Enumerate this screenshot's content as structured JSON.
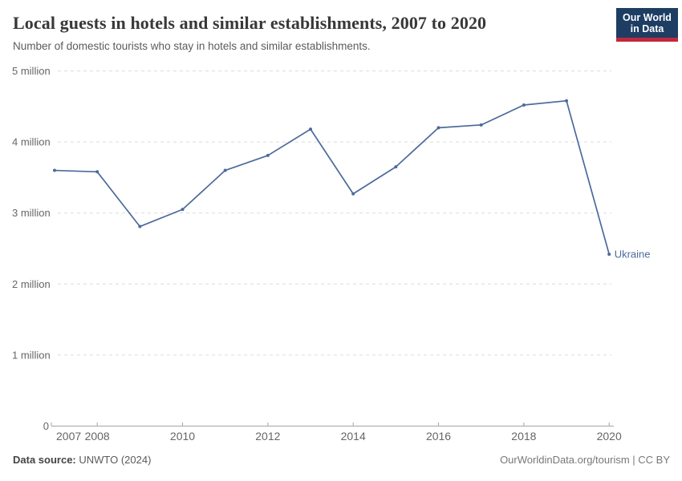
{
  "header": {
    "title": "Local guests in hotels and similar establishments, 2007 to 2020",
    "subtitle": "Number of domestic tourists who stay in hotels and similar establishments.",
    "logo": {
      "line1": "Our World",
      "line2": "in Data",
      "bg_color": "#1d3d63",
      "stripe_color": "#c0293c"
    }
  },
  "chart_data": {
    "type": "line",
    "title": "Local guests in hotels and similar establishments, 2007 to 2020",
    "xlabel": "",
    "ylabel": "",
    "x": [
      2007,
      2008,
      2009,
      2010,
      2011,
      2012,
      2013,
      2014,
      2015,
      2016,
      2017,
      2018,
      2019,
      2020
    ],
    "series": [
      {
        "name": "Ukraine",
        "color": "#4c6a9c",
        "values_millions": [
          3.6,
          3.58,
          2.81,
          3.05,
          3.6,
          3.81,
          4.18,
          3.27,
          3.65,
          4.2,
          4.24,
          4.52,
          4.58,
          2.42
        ]
      }
    ],
    "ylim_millions": [
      0,
      5
    ],
    "y_tick_labels": [
      "0",
      "1 million",
      "2 million",
      "3 million",
      "4 million",
      "5 million"
    ],
    "x_tick_years": [
      2007,
      2008,
      2010,
      2012,
      2014,
      2016,
      2018,
      2020
    ],
    "grid": "horizontal-dashed",
    "legend_position": "end-of-line",
    "end_label": "Ukraine",
    "colors": {
      "grid_color": "#dcdcdc",
      "axis_color": "#a3a3a3",
      "tick_label_color": "#666666"
    }
  },
  "footer": {
    "source_label": "Data source:",
    "source_value": "UNWTO (2024)",
    "license": "OurWorldinData.org/tourism | CC BY"
  }
}
